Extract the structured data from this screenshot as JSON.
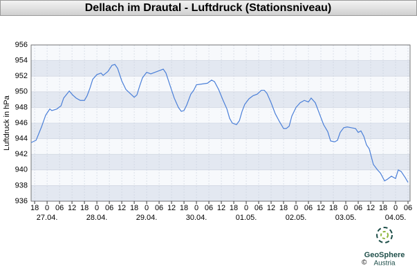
{
  "chart_data": {
    "type": "line",
    "title": "Dellach im Drautal - Luftdruck (Stationsniveau)",
    "y_label": "Luftdruck in hPa",
    "color": "#4a7fd8",
    "grid": true,
    "x": [
      -7.7,
      -5.3,
      -2.7,
      -0.7,
      1.3,
      2.3,
      4.7,
      6.7,
      8,
      10.7,
      12.3,
      14,
      16,
      18,
      19.3,
      20.7,
      22,
      24,
      26,
      27,
      29.3,
      31.3,
      32.7,
      34,
      36,
      38,
      40,
      42,
      43.3,
      44.7,
      46,
      48,
      50,
      52,
      54,
      56,
      57.3,
      59.3,
      61.3,
      63.3,
      64.7,
      66,
      67.3,
      69.3,
      70.7,
      72,
      74.7,
      77.3,
      79.3,
      80.7,
      82.7,
      84.7,
      86.7,
      88,
      89.3,
      91.3,
      92.7,
      94,
      95.3,
      97.3,
      99.3,
      101.3,
      103.3,
      104.7,
      106,
      108,
      110,
      112,
      114,
      115.3,
      116.7,
      118,
      120,
      122,
      124,
      126,
      127.3,
      129.3,
      131.3,
      133.3,
      135.3,
      136.7,
      138.7,
      140,
      141.3,
      143,
      144.7,
      146.7,
      148.7,
      150,
      151.3,
      152.7,
      154,
      155.3,
      157.3,
      159.3,
      160.7,
      162.7,
      164,
      166,
      168,
      169.3,
      170.7,
      172.7,
      174
    ],
    "values": [
      943.5,
      943.8,
      945.5,
      947,
      947.8,
      947.6,
      947.8,
      948.2,
      949.2,
      950.1,
      949.6,
      949.2,
      948.9,
      948.9,
      949.5,
      950.5,
      951.6,
      952.2,
      952.4,
      952.1,
      952.6,
      953.4,
      953.5,
      953,
      951.4,
      950.3,
      949.8,
      949.3,
      949.6,
      950.8,
      951.8,
      952.5,
      952.3,
      952.5,
      952.7,
      952.9,
      952.4,
      950.8,
      949.2,
      948,
      947.5,
      947.6,
      948.3,
      949.7,
      950.2,
      950.9,
      951,
      951.1,
      951.5,
      951.3,
      950.3,
      949,
      947.8,
      946.6,
      946,
      945.8,
      946.3,
      947.5,
      948.4,
      949.1,
      949.5,
      949.7,
      950.2,
      950.2,
      949.8,
      948.6,
      947.2,
      946.2,
      945.3,
      945.3,
      945.6,
      946.9,
      948,
      948.6,
      948.9,
      948.7,
      949.2,
      948.6,
      947.2,
      945.8,
      944.9,
      943.7,
      943.6,
      943.8,
      944.8,
      945.4,
      945.5,
      945.4,
      945.3,
      944.8,
      945,
      944.3,
      943.2,
      942.7,
      940.7,
      940,
      939.6,
      938.6,
      938.8,
      939.2,
      938.9,
      940,
      939.8,
      939,
      938.4
    ],
    "xlim": [
      -7.7,
      175
    ],
    "xticks": [
      {
        "value": -6,
        "label": "18"
      },
      0,
      {
        "value": 6,
        "label": "06"
      },
      12,
      18,
      {
        "value": 24,
        "label": "0"
      },
      {
        "value": 30,
        "label": "06"
      },
      {
        "value": 36,
        "label": "12"
      },
      {
        "value": 42,
        "label": "18"
      },
      {
        "value": 48,
        "label": "0"
      },
      {
        "value": 54,
        "label": "06"
      },
      {
        "value": 60,
        "label": "12"
      },
      {
        "value": 66,
        "label": "18"
      },
      {
        "value": 72,
        "label": "0"
      },
      {
        "value": 78,
        "label": "06"
      },
      {
        "value": 84,
        "label": "12"
      },
      {
        "value": 90,
        "label": "18"
      },
      {
        "value": 96,
        "label": "0"
      },
      {
        "value": 102,
        "label": "06"
      },
      {
        "value": 108,
        "label": "12"
      },
      {
        "value": 114,
        "label": "18"
      },
      {
        "value": 120,
        "label": "0"
      },
      {
        "value": 126,
        "label": "06"
      },
      {
        "value": 132,
        "label": "12"
      },
      {
        "value": 138,
        "label": "18"
      },
      {
        "value": 144,
        "label": "0"
      },
      {
        "value": 150,
        "label": "06"
      },
      {
        "value": 156,
        "label": "12"
      },
      {
        "value": 162,
        "label": "18"
      },
      {
        "value": 168,
        "label": "0"
      },
      {
        "value": 174,
        "label": "06"
      }
    ],
    "x_date_labels": [
      {
        "value": 0,
        "label": "27.04."
      },
      {
        "value": 24,
        "label": "28.04."
      },
      {
        "value": 48,
        "label": "29.04."
      },
      {
        "value": 72,
        "label": "30.04."
      },
      {
        "value": 96,
        "label": "01.05."
      },
      {
        "value": 120,
        "label": "02.05."
      },
      {
        "value": 144,
        "label": "03.05."
      },
      {
        "value": 168,
        "label": "04.05."
      }
    ],
    "ylim": [
      936,
      956
    ],
    "yticks": [
      936,
      938,
      940,
      942,
      944,
      946,
      948,
      950,
      952,
      954,
      956
    ]
  },
  "logo": {
    "copyright": "©",
    "name": "GeoSphere",
    "country": "Austria"
  }
}
